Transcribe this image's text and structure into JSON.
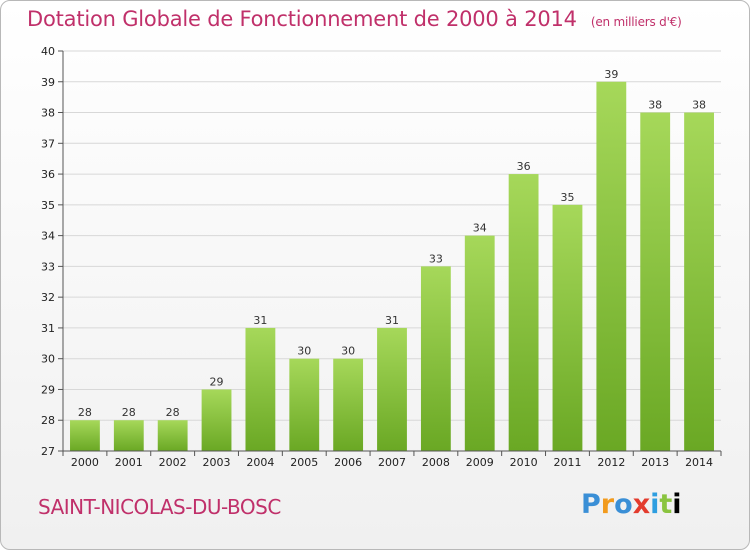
{
  "header": {
    "title": "Dotation Globale de Fonctionnement de 2000 à 2014",
    "unit": "(en milliers d'€)"
  },
  "footer": {
    "commune": "SAINT-NICOLAS-DU-BOSC",
    "brand": "Proxiti",
    "brand_letters": [
      "P",
      "r",
      "o",
      "x",
      "i",
      "t",
      "i"
    ]
  },
  "colors": {
    "bar_top": "#a6d85a",
    "bar_bottom": "#6aa824",
    "grid": "#d8d8d8",
    "accent": "#c0306a"
  },
  "chart_data": {
    "type": "bar",
    "title": "Dotation Globale de Fonctionnement de 2000 à 2014",
    "subtitle": "(en milliers d'€)",
    "categories": [
      "2000",
      "2001",
      "2002",
      "2003",
      "2004",
      "2005",
      "2006",
      "2007",
      "2008",
      "2009",
      "2010",
      "2011",
      "2012",
      "2013",
      "2014"
    ],
    "values": [
      28,
      28,
      28,
      29,
      31,
      30,
      30,
      31,
      33,
      34,
      36,
      35,
      39,
      38,
      38
    ],
    "ylim": [
      27,
      40
    ],
    "yticks": [
      27,
      28,
      29,
      30,
      31,
      32,
      33,
      34,
      35,
      36,
      37,
      38,
      39,
      40
    ],
    "xlabel": "",
    "ylabel": "",
    "grid": true
  }
}
